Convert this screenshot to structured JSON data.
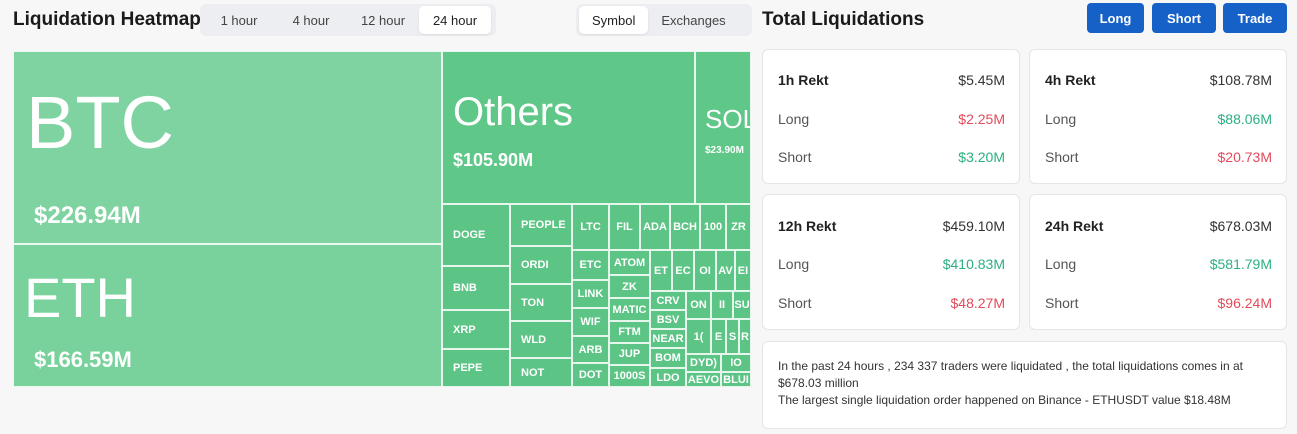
{
  "heatmap": {
    "title": "Liquidation Heatmap",
    "time_tabs": [
      "1 hour",
      "4 hour",
      "12 hour",
      "24 hour"
    ],
    "time_active": "24 hour",
    "view_tabs": [
      "Symbol",
      "Exchanges"
    ],
    "view_active": "Symbol",
    "cells": {
      "btc": {
        "symbol": "BTC",
        "value": "$226.94M"
      },
      "eth": {
        "symbol": "ETH",
        "value": "$166.59M"
      },
      "others": {
        "symbol": "Others",
        "value": "$105.90M"
      },
      "sol": {
        "symbol": "SOL",
        "value": "$23.90M"
      },
      "small": {
        "doge": "DOGE",
        "bnb": "BNB",
        "xrp": "XRP",
        "pepe": "PEPE",
        "people": "PEOPLE",
        "ordi": "ORDI",
        "ton": "TON",
        "wld": "WLD",
        "not": "NOT",
        "ltc": "LTC",
        "etc": "ETC",
        "link": "LINK",
        "wif": "WIF",
        "arb": "ARB",
        "dot": "DOT",
        "fil": "FIL",
        "ada": "ADA",
        "bch": "BCH",
        "c100": "100",
        "zr": "ZR",
        "atom": "ATOM",
        "zk": "ZK",
        "matic": "MATIC",
        "ftm": "FTM",
        "jup": "JUP",
        "c1000s": "1000S",
        "crv": "CRV",
        "bsv": "BSV",
        "near": "NEAR",
        "bom": "BOM",
        "ldo": "LDO",
        "et": "ET",
        "ec": "EC",
        "oi": "OI",
        "av": "AV",
        "ei": "EI",
        "on": "ON",
        "ii": "II",
        "su": "SU",
        "one": "1(",
        "e2": "E",
        "s2": "S",
        "r2": "R",
        "dydx": "DYD)",
        "io": "IO",
        "aevo": "AEVO",
        "blur": "BLUI"
      }
    }
  },
  "total": {
    "title": "Total Liquidations",
    "buttons": {
      "long": "Long",
      "short": "Short",
      "trade": "Trade"
    },
    "cards": [
      {
        "head_label": "1h Rekt",
        "head_value": "$5.45M",
        "long_label": "Long",
        "long_value": "$2.25M",
        "short_label": "Short",
        "short_value": "$3.20M"
      },
      {
        "head_label": "4h Rekt",
        "head_value": "$108.78M",
        "long_label": "Long",
        "long_value": "$88.06M",
        "short_label": "Short",
        "short_value": "$20.73M"
      },
      {
        "head_label": "12h Rekt",
        "head_value": "$459.10M",
        "long_label": "Long",
        "long_value": "$410.83M",
        "short_label": "Short",
        "short_value": "$48.27M"
      },
      {
        "head_label": "24h Rekt",
        "head_value": "$678.03M",
        "long_label": "Long",
        "long_value": "$581.79M",
        "short_label": "Short",
        "short_value": "$96.24M"
      }
    ],
    "summary_line1": "In the past 24 hours , 234 337 traders were liquidated , the total liquidations comes in at $678.03 million",
    "summary_line2": "The largest single liquidation order happened on Binance - ETHUSDT value $18.48M"
  },
  "colors": {
    "accent": "#1561c7",
    "green": "#2bb07f",
    "red": "#e14b5a",
    "treemap_green": "#66c98a"
  }
}
